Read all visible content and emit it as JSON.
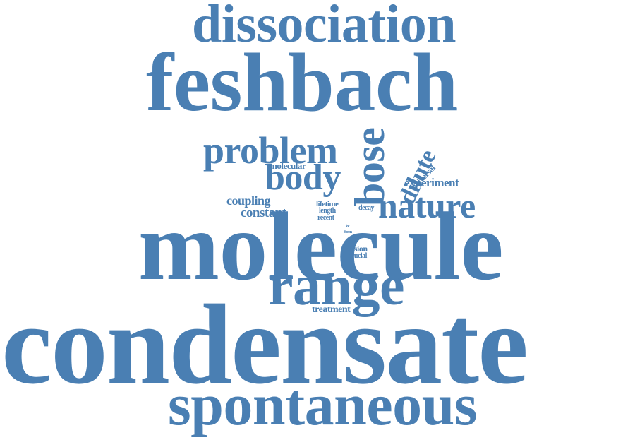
{
  "palette": {
    "word_color": "#4a7fb3",
    "background": "#ffffff"
  },
  "words": {
    "dissociation": "dissociation",
    "feshbach": "feshbach",
    "problem": "problem",
    "bose": "bose",
    "dilute": "dilute",
    "universal": "universal",
    "molecular": "molecular",
    "body": "body",
    "experiment": "experiment",
    "coupling": "coupling",
    "constant": "constant",
    "lifetime": "lifetime",
    "length": "length",
    "recent": "recent",
    "decay": "decay",
    "nature": "nature",
    "lot": "lot",
    "form": "form",
    "molecule": "molecule",
    "collision": "collision",
    "crucial": "crucial",
    "range": "range",
    "treatment": "treatment",
    "condensate": "condensate",
    "spontaneous": "spontaneous"
  }
}
